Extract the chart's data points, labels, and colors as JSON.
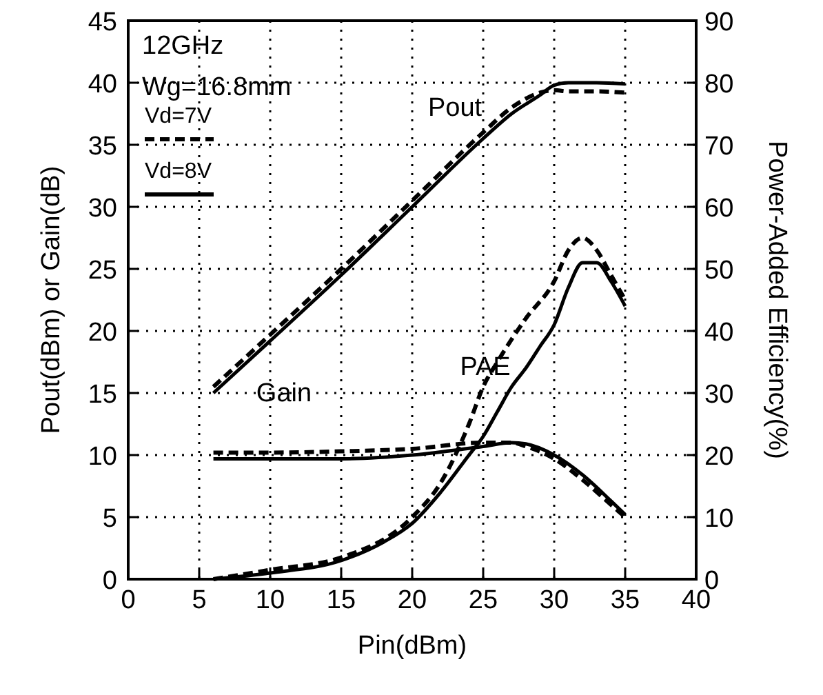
{
  "chart_data": {
    "type": "line",
    "xlabel": "Pin(dBm)",
    "ylabel": "Pout(dBm) or Gain(dB)",
    "y2label": "Power-Added Efficiency(%)",
    "xlim": [
      0,
      40
    ],
    "xticks": [
      0,
      5,
      10,
      15,
      20,
      25,
      30,
      35,
      40
    ],
    "ylim": [
      0,
      45
    ],
    "yticks": [
      0,
      5,
      10,
      15,
      20,
      25,
      30,
      35,
      40,
      45
    ],
    "y2lim": [
      0,
      90
    ],
    "y2ticks": [
      0,
      10,
      20,
      30,
      40,
      50,
      60,
      70,
      80,
      90
    ],
    "grid": true,
    "legend": "top left",
    "marker": "none",
    "series": [
      {
        "name": "Vd=7V",
        "color": "#000000",
        "line_style": "dashed",
        "x": [
          6,
          10,
          15,
          20,
          25,
          27,
          29,
          30,
          31,
          33,
          35
        ],
        "values": [
          15.5,
          19.7,
          25,
          30.5,
          36,
          38,
          39.2,
          39.4,
          39.3,
          39.3,
          39.2
        ]
      },
      {
        "name": "Vd=8V",
        "color": "#000000",
        "line_style": "solid",
        "x": [
          6,
          10,
          15,
          20,
          25,
          27,
          29,
          30,
          31,
          33,
          35
        ],
        "values": [
          15,
          19.2,
          24.5,
          30,
          35.5,
          37.5,
          39,
          39.8,
          40,
          40,
          39.9
        ]
      },
      {
        "color": "#000000",
        "line_style": "dashed",
        "x": [
          6,
          10,
          15,
          20,
          25,
          27,
          28,
          30,
          32,
          34,
          35
        ],
        "values": [
          10.2,
          10.2,
          10.3,
          10.5,
          11,
          11,
          10.7,
          9.7,
          8,
          6,
          5
        ]
      },
      {
        "color": "#000000",
        "line_style": "solid",
        "x": [
          6,
          10,
          15,
          20,
          25,
          27,
          28,
          30,
          32,
          34,
          35
        ],
        "values": [
          9.7,
          9.7,
          9.7,
          10,
          10.7,
          11,
          10.9,
          10,
          8.4,
          6.3,
          5.2
        ]
      },
      {
        "color": "#000000",
        "line_style": "dashed",
        "axis": "y2",
        "x": [
          6,
          10,
          15,
          20,
          22,
          24,
          25,
          26,
          28,
          30,
          31,
          32,
          33,
          34,
          35
        ],
        "values": [
          0,
          1.5,
          3.5,
          10,
          15.5,
          25,
          31,
          35,
          42,
          48,
          53,
          55,
          53,
          49,
          45
        ]
      },
      {
        "color": "#000000",
        "line_style": "solid",
        "axis": "y2",
        "x": [
          6,
          10,
          15,
          18,
          20,
          22,
          24,
          25,
          26,
          27,
          28,
          29,
          30,
          31,
          32,
          33,
          34,
          35
        ],
        "values": [
          0,
          1,
          3,
          6,
          9,
          14,
          20,
          23,
          27,
          31,
          34,
          37.5,
          41,
          47,
          51,
          51,
          48,
          44
        ]
      }
    ],
    "annotations": [
      "12GHz",
      "Wg=16.8mm",
      "Pout",
      "Gain",
      "PAE"
    ]
  }
}
